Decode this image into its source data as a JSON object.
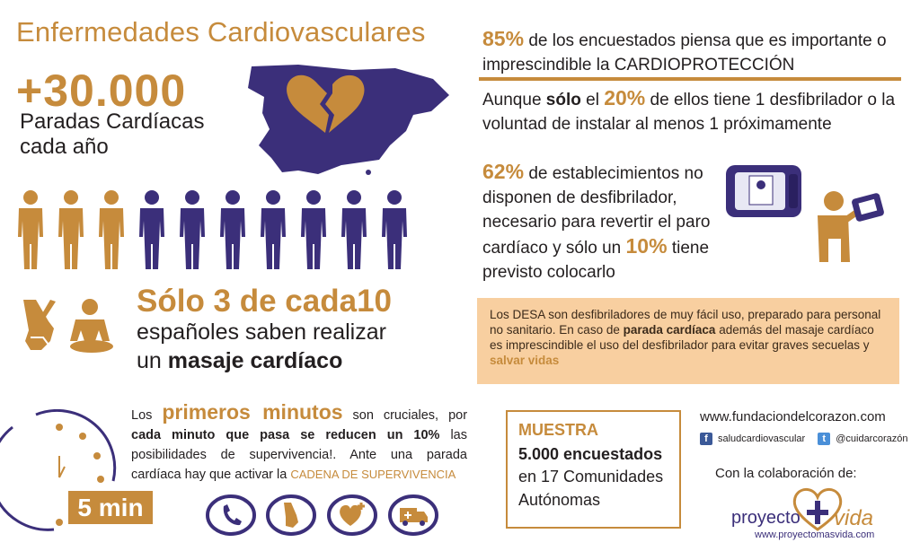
{
  "left": {
    "title": "Enfermedades Cardiovasculares",
    "big_number": "+30.000",
    "subtitle_line1": "Paradas Cardíacas",
    "subtitle_line2": "cada año",
    "solo": "Sólo 3 de cada10",
    "espan_line1": "españoles saben realizar",
    "espan_un": "un",
    "espan_bold": "masaje cardíaco"
  },
  "minutes": {
    "los": "Los",
    "primeros": "primeros minutos",
    "text1": "son cruciales,",
    "por": "por",
    "bold": "cada minuto que pasa se reducen un 10%",
    "text2": "las posibilidades de supervivencia!. Ante una parada cardíaca hay que activar la",
    "cadena": "CADENA DE SUPERVIVENCIA",
    "five_min": "5 min"
  },
  "right": {
    "p1_stat": "85%",
    "p1_text": "de los encuestados piensa que es importante o imprescindible la CARDIOPROTECCIÓN",
    "p2_aunque": "Aunque",
    "p2_solo": "sólo",
    "p2_el": "el",
    "p2_stat": "20%",
    "p2_text": "de ellos tiene 1 desfibrilador o la voluntad de instalar al menos 1 próximamente",
    "p3_stat": "62%",
    "p3_text": "de establecimientos no disponen de desfibrilador, necesario para revertir el paro cardíaco y sólo un",
    "p3_stat2": "10%",
    "p3_text2": "tiene previsto colocarlo"
  },
  "desa": {
    "text1": "Los DESA son desfibriladores de muy fácil uso, preparado para personal no sanitario. En caso de",
    "bold1": "parada cardíaca",
    "text2": "además del masaje cardíaco es imprescindible el uso del desfibrilador para evitar graves secuelas y",
    "bold2": "salvar vidas"
  },
  "muestra": {
    "title": "MUESTRA",
    "count": "5.000 encuestados",
    "line2": "en 17 Comunidades",
    "line3": "Autónomas"
  },
  "footer": {
    "website": "www.fundaciondelcorazon.com",
    "facebook": "saludcardiovascular",
    "twitter": "@cuidarcorazón",
    "colab": "Con la colaboración de:",
    "logo_word1": "proyecto",
    "logo_word2": "vida",
    "logo_url": "www.proyectomasvida.com"
  },
  "colors": {
    "gold": "#c68b3c",
    "purple": "#3b2f7a",
    "desa_bg": "#f8cfa0"
  },
  "people": {
    "total": 10,
    "highlighted": 3
  }
}
